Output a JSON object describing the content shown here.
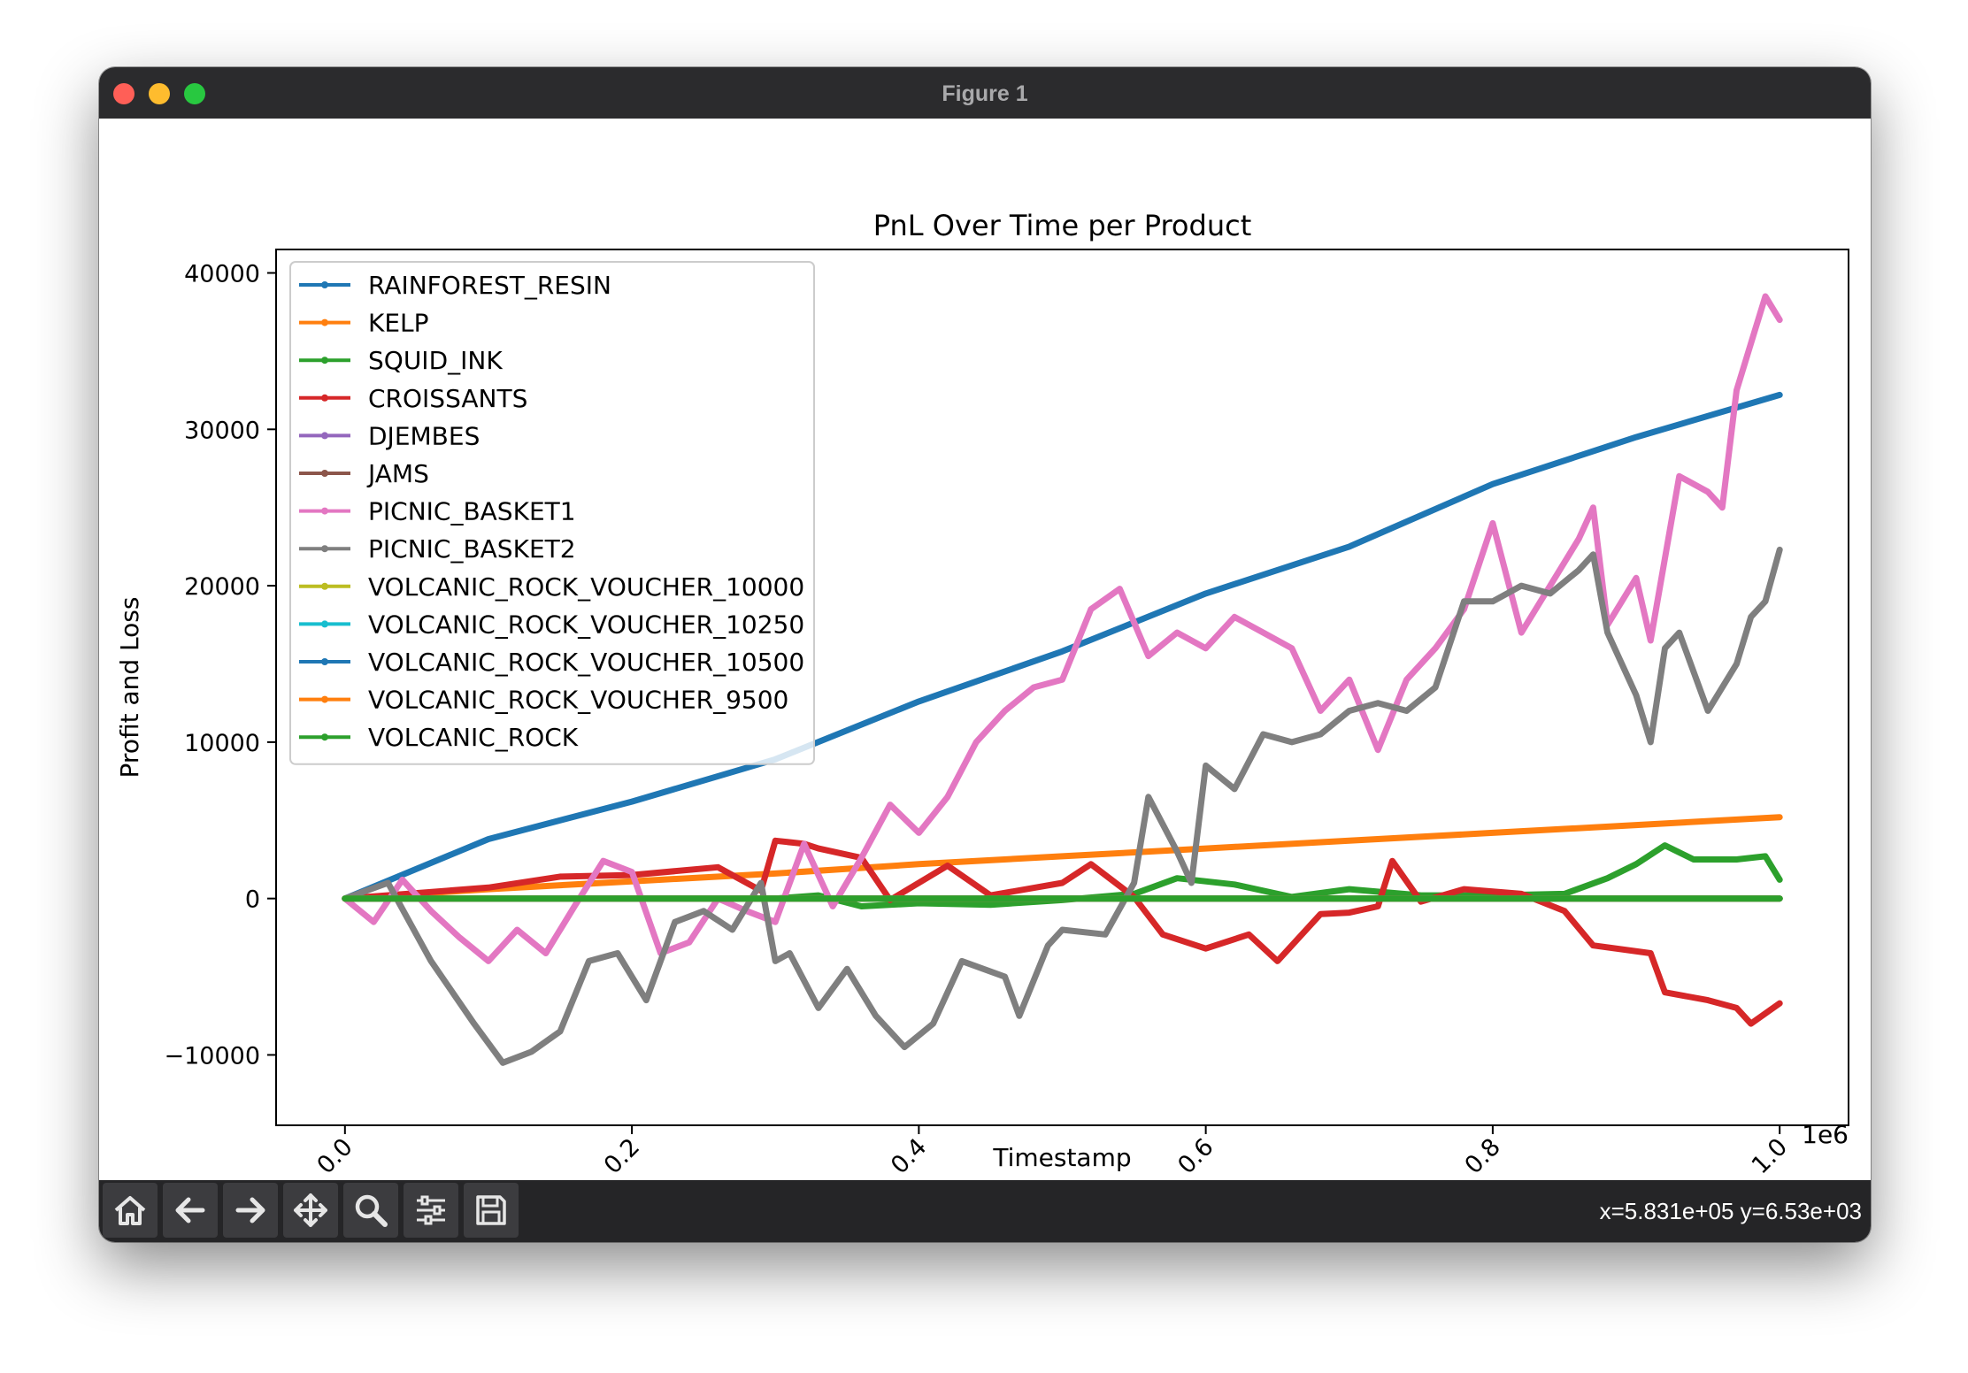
{
  "window": {
    "title": "Figure 1"
  },
  "status": {
    "coords": "x=5.831e+05 y=6.53e+03"
  },
  "toolbar": {
    "buttons": [
      "home-icon",
      "back-arrow-icon",
      "forward-arrow-icon",
      "pan-move-icon",
      "zoom-magnifier-icon",
      "configure-subplots-icon",
      "save-floppy-icon"
    ]
  },
  "chart_data": {
    "type": "line",
    "title": "PnL Over Time per Product",
    "xlabel": "Timestamp",
    "ylabel": "Profit and Loss",
    "x_offset_label": "1e6",
    "xlim": [
      -0.048,
      1.048
    ],
    "ylim": [
      -14500,
      41500
    ],
    "xticks": [
      0.0,
      0.2,
      0.4,
      0.6,
      0.8,
      1.0
    ],
    "xtick_labels": [
      "0.0",
      "0.2",
      "0.4",
      "0.6",
      "0.8",
      "1.0"
    ],
    "yticks": [
      -10000,
      0,
      10000,
      20000,
      30000,
      40000
    ],
    "ytick_labels": [
      "−10000",
      "0",
      "10000",
      "20000",
      "30000",
      "40000"
    ],
    "legend_position": "top-left",
    "series": [
      {
        "name": "RAINFOREST_RESIN",
        "color": "#1f77b4",
        "points": [
          [
            0,
            0
          ],
          [
            0.1,
            3800
          ],
          [
            0.2,
            6200
          ],
          [
            0.3,
            8900
          ],
          [
            0.4,
            12600
          ],
          [
            0.5,
            15800
          ],
          [
            0.6,
            19500
          ],
          [
            0.7,
            22500
          ],
          [
            0.8,
            26500
          ],
          [
            0.9,
            29500
          ],
          [
            1.0,
            32200
          ]
        ]
      },
      {
        "name": "KELP",
        "color": "#ff7f0e",
        "points": [
          [
            0,
            0
          ],
          [
            0.1,
            600
          ],
          [
            0.2,
            1100
          ],
          [
            0.3,
            1600
          ],
          [
            0.4,
            2200
          ],
          [
            0.5,
            2700
          ],
          [
            0.6,
            3200
          ],
          [
            0.7,
            3700
          ],
          [
            0.8,
            4200
          ],
          [
            0.9,
            4700
          ],
          [
            1.0,
            5200
          ]
        ]
      },
      {
        "name": "SQUID_INK",
        "color": "#2ca02c",
        "points": [
          [
            0,
            0
          ],
          [
            0.3,
            0
          ],
          [
            0.33,
            200
          ],
          [
            0.36,
            -500
          ],
          [
            0.4,
            -300
          ],
          [
            0.45,
            -400
          ],
          [
            0.5,
            -100
          ],
          [
            0.55,
            300
          ],
          [
            0.58,
            1300
          ],
          [
            0.62,
            900
          ],
          [
            0.66,
            100
          ],
          [
            0.7,
            600
          ],
          [
            0.75,
            200
          ],
          [
            0.8,
            200
          ],
          [
            0.85,
            300
          ],
          [
            0.88,
            1300
          ],
          [
            0.9,
            2200
          ],
          [
            0.92,
            3400
          ],
          [
            0.94,
            2500
          ],
          [
            0.97,
            2500
          ],
          [
            0.99,
            2700
          ],
          [
            1.0,
            1200
          ]
        ]
      },
      {
        "name": "CROISSANTS",
        "color": "#d62728",
        "points": [
          [
            0,
            0
          ],
          [
            0.1,
            700
          ],
          [
            0.15,
            1400
          ],
          [
            0.2,
            1500
          ],
          [
            0.26,
            2000
          ],
          [
            0.29,
            500
          ],
          [
            0.3,
            3700
          ],
          [
            0.32,
            3500
          ],
          [
            0.33,
            3200
          ],
          [
            0.36,
            2600
          ],
          [
            0.38,
            -100
          ],
          [
            0.42,
            2100
          ],
          [
            0.45,
            200
          ],
          [
            0.5,
            1000
          ],
          [
            0.52,
            2200
          ],
          [
            0.55,
            100
          ],
          [
            0.57,
            -2300
          ],
          [
            0.6,
            -3200
          ],
          [
            0.63,
            -2300
          ],
          [
            0.65,
            -4000
          ],
          [
            0.68,
            -1000
          ],
          [
            0.7,
            -900
          ],
          [
            0.72,
            -500
          ],
          [
            0.73,
            2400
          ],
          [
            0.75,
            -200
          ],
          [
            0.78,
            600
          ],
          [
            0.82,
            300
          ],
          [
            0.85,
            -800
          ],
          [
            0.87,
            -3000
          ],
          [
            0.91,
            -3500
          ],
          [
            0.92,
            -6000
          ],
          [
            0.95,
            -6500
          ],
          [
            0.97,
            -7000
          ],
          [
            0.98,
            -8000
          ],
          [
            1.0,
            -6700
          ]
        ]
      },
      {
        "name": "DJEMBES",
        "color": "#9467bd",
        "points": [
          [
            0,
            0
          ],
          [
            1.0,
            0
          ]
        ]
      },
      {
        "name": "JAMS",
        "color": "#8c564b",
        "points": [
          [
            0,
            0
          ],
          [
            1.0,
            0
          ]
        ]
      },
      {
        "name": "PICNIC_BASKET1",
        "color": "#e377c2",
        "points": [
          [
            0,
            0
          ],
          [
            0.02,
            -1500
          ],
          [
            0.04,
            1200
          ],
          [
            0.06,
            -800
          ],
          [
            0.08,
            -2500
          ],
          [
            0.1,
            -4000
          ],
          [
            0.12,
            -2000
          ],
          [
            0.14,
            -3500
          ],
          [
            0.16,
            -500
          ],
          [
            0.18,
            2400
          ],
          [
            0.2,
            1700
          ],
          [
            0.22,
            -3500
          ],
          [
            0.24,
            -2800
          ],
          [
            0.26,
            0
          ],
          [
            0.28,
            -800
          ],
          [
            0.3,
            -1500
          ],
          [
            0.32,
            3500
          ],
          [
            0.34,
            -500
          ],
          [
            0.36,
            2600
          ],
          [
            0.38,
            6000
          ],
          [
            0.4,
            4200
          ],
          [
            0.42,
            6500
          ],
          [
            0.44,
            10000
          ],
          [
            0.46,
            12000
          ],
          [
            0.48,
            13500
          ],
          [
            0.5,
            14000
          ],
          [
            0.52,
            18500
          ],
          [
            0.54,
            19800
          ],
          [
            0.56,
            15500
          ],
          [
            0.58,
            17000
          ],
          [
            0.6,
            16000
          ],
          [
            0.62,
            18000
          ],
          [
            0.64,
            17000
          ],
          [
            0.66,
            16000
          ],
          [
            0.68,
            12000
          ],
          [
            0.7,
            14000
          ],
          [
            0.72,
            9500
          ],
          [
            0.74,
            14000
          ],
          [
            0.76,
            16000
          ],
          [
            0.78,
            18500
          ],
          [
            0.8,
            24000
          ],
          [
            0.82,
            17000
          ],
          [
            0.84,
            20000
          ],
          [
            0.86,
            23000
          ],
          [
            0.87,
            25000
          ],
          [
            0.88,
            17500
          ],
          [
            0.9,
            20500
          ],
          [
            0.91,
            16500
          ],
          [
            0.93,
            27000
          ],
          [
            0.95,
            26000
          ],
          [
            0.96,
            25000
          ],
          [
            0.97,
            32500
          ],
          [
            0.98,
            35500
          ],
          [
            0.99,
            38500
          ],
          [
            1.0,
            37000
          ]
        ]
      },
      {
        "name": "PICNIC_BASKET2",
        "color": "#7f7f7f",
        "points": [
          [
            0,
            0
          ],
          [
            0.03,
            1000
          ],
          [
            0.06,
            -4000
          ],
          [
            0.09,
            -8000
          ],
          [
            0.11,
            -10500
          ],
          [
            0.13,
            -9800
          ],
          [
            0.15,
            -8500
          ],
          [
            0.17,
            -4000
          ],
          [
            0.19,
            -3500
          ],
          [
            0.21,
            -6500
          ],
          [
            0.23,
            -1500
          ],
          [
            0.25,
            -800
          ],
          [
            0.27,
            -2000
          ],
          [
            0.29,
            1000
          ],
          [
            0.3,
            -4000
          ],
          [
            0.31,
            -3500
          ],
          [
            0.33,
            -7000
          ],
          [
            0.35,
            -4500
          ],
          [
            0.37,
            -7500
          ],
          [
            0.39,
            -9500
          ],
          [
            0.41,
            -8000
          ],
          [
            0.43,
            -4000
          ],
          [
            0.46,
            -5000
          ],
          [
            0.47,
            -7500
          ],
          [
            0.49,
            -3000
          ],
          [
            0.5,
            -2000
          ],
          [
            0.53,
            -2300
          ],
          [
            0.55,
            1000
          ],
          [
            0.56,
            6500
          ],
          [
            0.58,
            3000
          ],
          [
            0.59,
            1000
          ],
          [
            0.6,
            8500
          ],
          [
            0.62,
            7000
          ],
          [
            0.64,
            10500
          ],
          [
            0.66,
            10000
          ],
          [
            0.68,
            10500
          ],
          [
            0.7,
            12000
          ],
          [
            0.72,
            12500
          ],
          [
            0.74,
            12000
          ],
          [
            0.76,
            13500
          ],
          [
            0.78,
            19000
          ],
          [
            0.8,
            19000
          ],
          [
            0.82,
            20000
          ],
          [
            0.84,
            19500
          ],
          [
            0.86,
            21000
          ],
          [
            0.87,
            22000
          ],
          [
            0.88,
            17000
          ],
          [
            0.9,
            13000
          ],
          [
            0.91,
            10000
          ],
          [
            0.92,
            16000
          ],
          [
            0.93,
            17000
          ],
          [
            0.95,
            12000
          ],
          [
            0.97,
            15000
          ],
          [
            0.98,
            18000
          ],
          [
            0.99,
            19000
          ],
          [
            1.0,
            22300
          ]
        ]
      },
      {
        "name": "VOLCANIC_ROCK_VOUCHER_10000",
        "color": "#bcbd22",
        "points": [
          [
            0,
            0
          ],
          [
            1.0,
            0
          ]
        ]
      },
      {
        "name": "VOLCANIC_ROCK_VOUCHER_10250",
        "color": "#17becf",
        "points": [
          [
            0,
            0
          ],
          [
            1.0,
            0
          ]
        ]
      },
      {
        "name": "VOLCANIC_ROCK_VOUCHER_10500",
        "color": "#1f77b4",
        "points": [
          [
            0,
            0
          ],
          [
            1.0,
            0
          ]
        ]
      },
      {
        "name": "VOLCANIC_ROCK_VOUCHER_9500",
        "color": "#ff7f0e",
        "points": [
          [
            0,
            0
          ],
          [
            1.0,
            0
          ]
        ]
      },
      {
        "name": "VOLCANIC_ROCK",
        "color": "#2ca02c",
        "points": [
          [
            0,
            0
          ],
          [
            1.0,
            0
          ]
        ]
      }
    ]
  }
}
